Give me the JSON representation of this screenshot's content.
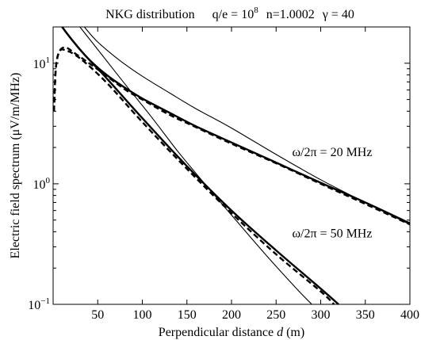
{
  "chart_data": {
    "type": "line",
    "title": {
      "prefix": "NKG distribution",
      "qe_label": "q/e = 10",
      "qe_exp": "8",
      "n_label": "n=1.0002",
      "gamma_label": "γ = 40"
    },
    "xlabel": {
      "main": "Perpendicular distance ",
      "var": "d",
      "unit": " (m)"
    },
    "ylabel": "Electric field spectrum  (μV/m/MHz)",
    "xlim": [
      0,
      400
    ],
    "ylim": [
      0.1,
      20
    ],
    "yscale": "log",
    "grid": false,
    "legend": "none",
    "x_ticks": [
      50,
      100,
      150,
      200,
      250,
      300,
      350,
      400
    ],
    "y_ticks": [
      {
        "value": 0.1,
        "base": "10",
        "exp": "−1"
      },
      {
        "value": 1,
        "base": "10",
        "exp": "0"
      },
      {
        "value": 10,
        "base": "10",
        "exp": "1"
      }
    ],
    "annotations": [
      {
        "text": "ω/2π = 20 MHz",
        "x": 268,
        "y": 1.7
      },
      {
        "text": "ω/2π = 50 MHz",
        "x": 268,
        "y": 0.36
      }
    ],
    "series": [
      {
        "group": "20 MHz",
        "style": "thick-solid",
        "points": [
          [
            10,
            20
          ],
          [
            20,
            16
          ],
          [
            40,
            10.8
          ],
          [
            60,
            8
          ],
          [
            80,
            6.3
          ],
          [
            100,
            5.1
          ],
          [
            130,
            3.9
          ],
          [
            160,
            3.0
          ],
          [
            200,
            2.2
          ],
          [
            250,
            1.5
          ],
          [
            300,
            1.02
          ],
          [
            350,
            0.7
          ],
          [
            400,
            0.47
          ]
        ]
      },
      {
        "group": "20 MHz",
        "style": "thin-solid",
        "points": [
          [
            35,
            20
          ],
          [
            50,
            15
          ],
          [
            75,
            10.5
          ],
          [
            100,
            7.8
          ],
          [
            130,
            5.7
          ],
          [
            160,
            4.2
          ],
          [
            200,
            2.9
          ],
          [
            250,
            1.75
          ],
          [
            300,
            1.08
          ],
          [
            350,
            0.7
          ],
          [
            400,
            0.46
          ]
        ]
      },
      {
        "group": "20 MHz",
        "style": "dashed",
        "points": [
          [
            1,
            4
          ],
          [
            3,
            9
          ],
          [
            7,
            12.5
          ],
          [
            14,
            13.5
          ],
          [
            25,
            12
          ],
          [
            50,
            8.9
          ],
          [
            80,
            6.1
          ],
          [
            100,
            5.0
          ],
          [
            130,
            3.75
          ],
          [
            160,
            2.95
          ],
          [
            200,
            2.15
          ],
          [
            250,
            1.48
          ],
          [
            300,
            1.0
          ],
          [
            350,
            0.68
          ],
          [
            400,
            0.46
          ]
        ]
      },
      {
        "group": "50 MHz",
        "style": "thick-solid",
        "points": [
          [
            10,
            20
          ],
          [
            30,
            13
          ],
          [
            60,
            7.5
          ],
          [
            100,
            3.5
          ],
          [
            150,
            1.4
          ],
          [
            200,
            0.6
          ],
          [
            250,
            0.28
          ],
          [
            300,
            0.135
          ],
          [
            320,
            0.1
          ]
        ]
      },
      {
        "group": "50 MHz",
        "style": "thin-solid",
        "points": [
          [
            30,
            20
          ],
          [
            50,
            13
          ],
          [
            80,
            6.8
          ],
          [
            110,
            3.6
          ],
          [
            140,
            1.85
          ],
          [
            170,
            1.0
          ],
          [
            200,
            0.55
          ],
          [
            240,
            0.25
          ],
          [
            275,
            0.13
          ],
          [
            290,
            0.1
          ]
        ]
      },
      {
        "group": "50 MHz",
        "style": "dashed",
        "points": [
          [
            1,
            4
          ],
          [
            3,
            9
          ],
          [
            7,
            12.5
          ],
          [
            14,
            12.8
          ],
          [
            30,
            11
          ],
          [
            60,
            6.9
          ],
          [
            100,
            3.25
          ],
          [
            150,
            1.33
          ],
          [
            200,
            0.57
          ],
          [
            250,
            0.26
          ],
          [
            300,
            0.128
          ],
          [
            315,
            0.1
          ]
        ]
      }
    ]
  }
}
